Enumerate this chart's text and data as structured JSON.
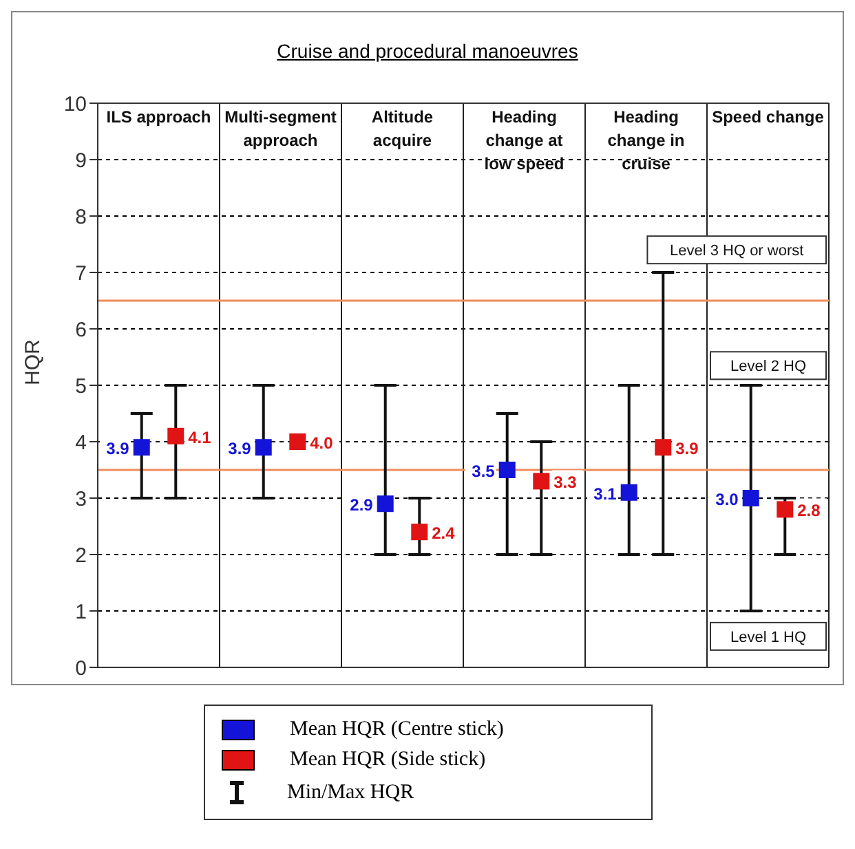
{
  "chart_data": {
    "type": "scatter",
    "title": "Cruise and procedural manoeuvres",
    "ylabel": "HQR",
    "categories": [
      "ILS approach",
      "Multi-segment approach",
      "Altitude acquire",
      "Heading change at low speed",
      "Heading change in cruise",
      "Speed change"
    ],
    "series": [
      {
        "name": "Mean HQR (Centre stick)",
        "color": "#1414d8",
        "values": [
          3.9,
          3.9,
          2.9,
          3.5,
          3.1,
          3.0
        ],
        "value_labels": [
          "3.9",
          "3.9",
          "2.9",
          "3.5",
          "3.1",
          "3.0"
        ],
        "errors": [
          [
            3,
            4.5
          ],
          [
            3,
            5
          ],
          [
            2,
            5
          ],
          [
            2,
            4.5
          ],
          [
            2,
            5
          ],
          [
            1,
            5
          ]
        ]
      },
      {
        "name": "Mean HQR (Side stick)",
        "color": "#e01414",
        "values": [
          4.1,
          4.0,
          2.4,
          3.3,
          3.9,
          2.8
        ],
        "value_labels": [
          "4.1",
          "4.0",
          "2.4",
          "3.3",
          "3.9",
          "2.8"
        ],
        "errors": [
          [
            3,
            5
          ],
          null,
          [
            2,
            3
          ],
          [
            2,
            4
          ],
          [
            2,
            7
          ],
          [
            2,
            3
          ]
        ]
      }
    ],
    "ylim": [
      0,
      10
    ],
    "yticks": [
      0,
      1,
      2,
      3,
      4,
      5,
      6,
      7,
      8,
      9,
      10
    ],
    "grid": "y",
    "marker": "square",
    "legend": "bottom",
    "ref_lines": [
      {
        "axis": "y",
        "value": 3.5,
        "color": "#f08c5a"
      },
      {
        "axis": "y",
        "value": 6.5,
        "color": "#f08c5a"
      }
    ],
    "annotations": [
      "Level 3 HQ or worst",
      "Level 2 HQ",
      "Level 1 HQ",
      "Min/Max HQR"
    ]
  }
}
